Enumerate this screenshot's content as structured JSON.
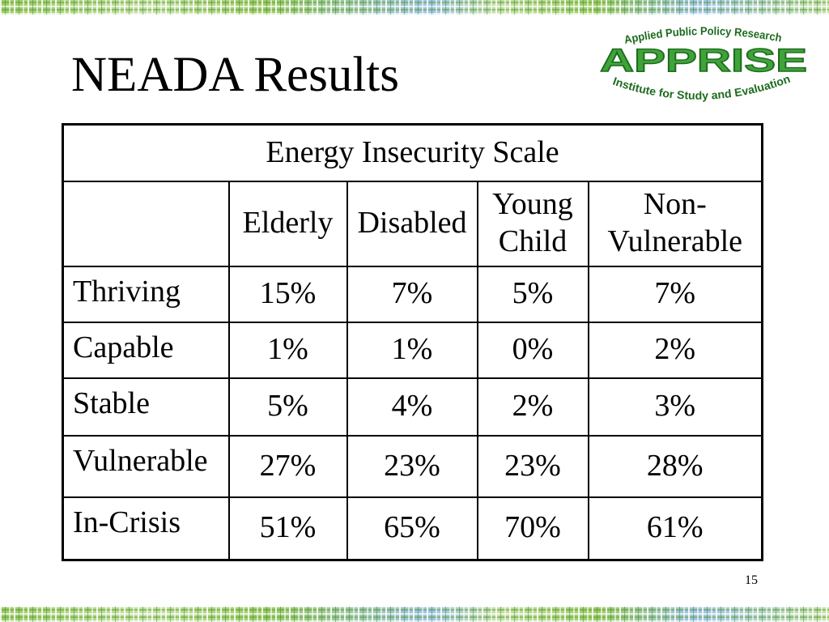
{
  "slide": {
    "title": "NEADA Results",
    "page_number": "15"
  },
  "logo": {
    "top_arc": "Applied Public Policy Research",
    "name": "APPRISE",
    "bottom_arc": "Institute for Study and Evaluation"
  },
  "table": {
    "caption": "Energy Insecurity Scale",
    "columns": [
      "Elderly",
      "Disabled",
      "Young Child",
      "Non-Vulnerable"
    ],
    "rows": [
      {
        "label": "Thriving",
        "values": [
          "15%",
          "7%",
          "5%",
          "7%"
        ]
      },
      {
        "label": "Capable",
        "values": [
          "1%",
          "1%",
          "0%",
          "2%"
        ]
      },
      {
        "label": "Stable",
        "values": [
          "5%",
          "4%",
          "2%",
          "3%"
        ]
      },
      {
        "label": "Vulnerable",
        "values": [
          "27%",
          "23%",
          "23%",
          "28%"
        ]
      },
      {
        "label": "In-Crisis",
        "values": [
          "51%",
          "65%",
          "70%",
          "61%"
        ]
      }
    ]
  },
  "colors": {
    "logo_green": "#3fa33a",
    "logo_dark_green": "#1e6b1e",
    "band_green": "#9ccc65",
    "band_light": "#dcedc8",
    "band_blue": "#9fc5e8"
  }
}
